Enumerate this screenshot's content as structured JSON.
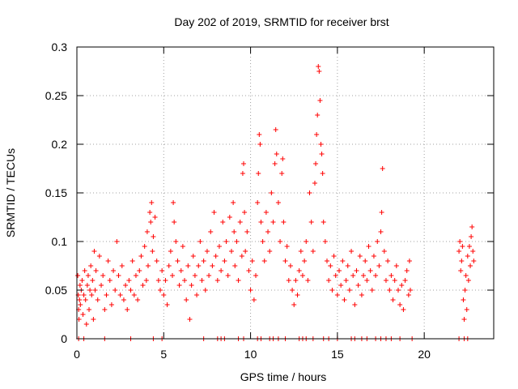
{
  "chart_data": {
    "type": "scatter",
    "title": "Day 202 of 2019, SRMTID for receiver brst",
    "xlabel": "GPS time / hours",
    "ylabel": "SRMTID / TECUs",
    "xlim": [
      0,
      24
    ],
    "ylim": [
      0,
      0.3
    ],
    "grid": true,
    "marker": "+",
    "color": "#ff0000",
    "x_ticks": [
      0,
      5,
      10,
      15,
      20
    ],
    "x_tick_labels": [
      "0",
      "5",
      "10",
      "15",
      "20"
    ],
    "y_ticks": [
      0,
      0.05,
      0.1,
      0.15,
      0.2,
      0.25,
      0.3
    ],
    "y_tick_labels": [
      "0",
      "0.05",
      "0.1",
      "0.15",
      "0.2",
      "0.25",
      "0.3"
    ],
    "series": [
      {
        "name": "SRMTID",
        "points": [
          [
            0.05,
            0.065
          ],
          [
            0.08,
            0.045
          ],
          [
            0.1,
            0.03
          ],
          [
            0.12,
            0.02
          ],
          [
            0.15,
            0.04
          ],
          [
            0.18,
            0.055
          ],
          [
            0.2,
            0.035
          ],
          [
            0.25,
            0.05
          ],
          [
            0.3,
            0.06
          ],
          [
            0.35,
            0.025
          ],
          [
            0.4,
            0.045
          ],
          [
            0.45,
            0.07
          ],
          [
            0.5,
            0.04
          ],
          [
            0.55,
            0.015
          ],
          [
            0.6,
            0.055
          ],
          [
            0.65,
            0.065
          ],
          [
            0.7,
            0.03
          ],
          [
            0.75,
            0.05
          ],
          [
            0.8,
            0.075
          ],
          [
            0.85,
            0.045
          ],
          [
            0.9,
            0.06
          ],
          [
            0.95,
            0.02
          ],
          [
            1.0,
            0.09
          ],
          [
            1.05,
            0.05
          ],
          [
            1.1,
            0.07
          ],
          [
            1.2,
            0.04
          ],
          [
            1.3,
            0.085
          ],
          [
            1.4,
            0.055
          ],
          [
            1.5,
            0.065
          ],
          [
            1.6,
            0.03
          ],
          [
            1.7,
            0.045
          ],
          [
            1.8,
            0.08
          ],
          [
            1.9,
            0.06
          ],
          [
            2.0,
            0.035
          ],
          [
            2.1,
            0.07
          ],
          [
            2.2,
            0.05
          ],
          [
            2.3,
            0.1
          ],
          [
            2.4,
            0.065
          ],
          [
            2.5,
            0.045
          ],
          [
            2.6,
            0.075
          ],
          [
            2.7,
            0.04
          ],
          [
            2.8,
            0.055
          ],
          [
            2.9,
            0.03
          ],
          [
            3.0,
            0.06
          ],
          [
            3.1,
            0.05
          ],
          [
            3.2,
            0.08
          ],
          [
            3.3,
            0.045
          ],
          [
            3.4,
            0.065
          ],
          [
            3.5,
            0.04
          ],
          [
            3.6,
            0.07
          ],
          [
            3.7,
            0.085
          ],
          [
            3.8,
            0.055
          ],
          [
            3.9,
            0.095
          ],
          [
            4.0,
            0.06
          ],
          [
            4.05,
            0.11
          ],
          [
            4.1,
            0.075
          ],
          [
            4.2,
            0.13
          ],
          [
            4.25,
            0.12
          ],
          [
            4.3,
            0.14
          ],
          [
            4.35,
            0.09
          ],
          [
            4.4,
            0.105
          ],
          [
            4.5,
            0.125
          ],
          [
            4.6,
            0.08
          ],
          [
            4.7,
            0.06
          ],
          [
            4.8,
            0.05
          ],
          [
            4.9,
            0.07
          ],
          [
            5.0,
            0.045
          ],
          [
            5.1,
            0.06
          ],
          [
            5.2,
            0.035
          ],
          [
            5.3,
            0.075
          ],
          [
            5.4,
            0.09
          ],
          [
            5.5,
            0.065
          ],
          [
            5.55,
            0.14
          ],
          [
            5.6,
            0.12
          ],
          [
            5.7,
            0.1
          ],
          [
            5.8,
            0.08
          ],
          [
            5.9,
            0.055
          ],
          [
            6.0,
            0.07
          ],
          [
            6.1,
            0.095
          ],
          [
            6.2,
            0.06
          ],
          [
            6.3,
            0.04
          ],
          [
            6.4,
            0.075
          ],
          [
            6.5,
            0.02
          ],
          [
            6.6,
            0.055
          ],
          [
            6.7,
            0.085
          ],
          [
            6.8,
            0.065
          ],
          [
            6.9,
            0.045
          ],
          [
            7.0,
            0.075
          ],
          [
            7.1,
            0.1
          ],
          [
            7.2,
            0.06
          ],
          [
            7.3,
            0.08
          ],
          [
            7.4,
            0.05
          ],
          [
            7.5,
            0.09
          ],
          [
            7.6,
            0.065
          ],
          [
            7.7,
            0.11
          ],
          [
            7.8,
            0.075
          ],
          [
            7.9,
            0.13
          ],
          [
            8.0,
            0.085
          ],
          [
            8.1,
            0.06
          ],
          [
            8.2,
            0.095
          ],
          [
            8.3,
            0.07
          ],
          [
            8.4,
            0.12
          ],
          [
            8.5,
            0.08
          ],
          [
            8.6,
            0.1
          ],
          [
            8.7,
            0.065
          ],
          [
            8.8,
            0.125
          ],
          [
            8.9,
            0.09
          ],
          [
            9.0,
            0.14
          ],
          [
            9.05,
            0.11
          ],
          [
            9.1,
            0.075
          ],
          [
            9.2,
            0.1
          ],
          [
            9.3,
            0.06
          ],
          [
            9.4,
            0.12
          ],
          [
            9.5,
            0.085
          ],
          [
            9.55,
            0.17
          ],
          [
            9.6,
            0.18
          ],
          [
            9.65,
            0.13
          ],
          [
            9.7,
            0.09
          ],
          [
            9.8,
            0.11
          ],
          [
            9.9,
            0.07
          ],
          [
            10.0,
            0.05
          ],
          [
            10.1,
            0.08
          ],
          [
            10.2,
            0.04
          ],
          [
            10.3,
            0.065
          ],
          [
            10.4,
            0.14
          ],
          [
            10.45,
            0.17
          ],
          [
            10.5,
            0.21
          ],
          [
            10.55,
            0.2
          ],
          [
            10.6,
            0.12
          ],
          [
            10.7,
            0.1
          ],
          [
            10.8,
            0.08
          ],
          [
            10.9,
            0.13
          ],
          [
            11.0,
            0.11
          ],
          [
            11.1,
            0.09
          ],
          [
            11.2,
            0.15
          ],
          [
            11.3,
            0.12
          ],
          [
            11.4,
            0.18
          ],
          [
            11.45,
            0.215
          ],
          [
            11.5,
            0.19
          ],
          [
            11.6,
            0.14
          ],
          [
            11.7,
            0.1
          ],
          [
            11.8,
            0.17
          ],
          [
            11.85,
            0.185
          ],
          [
            11.9,
            0.12
          ],
          [
            12.0,
            0.08
          ],
          [
            12.1,
            0.095
          ],
          [
            12.2,
            0.06
          ],
          [
            12.3,
            0.075
          ],
          [
            12.4,
            0.05
          ],
          [
            12.5,
            0.035
          ],
          [
            12.6,
            0.06
          ],
          [
            12.7,
            0.045
          ],
          [
            12.8,
            0.07
          ],
          [
            12.9,
            0.09
          ],
          [
            13.0,
            0.065
          ],
          [
            13.1,
            0.08
          ],
          [
            13.2,
            0.1
          ],
          [
            13.3,
            0.06
          ],
          [
            13.4,
            0.15
          ],
          [
            13.5,
            0.12
          ],
          [
            13.6,
            0.09
          ],
          [
            13.7,
            0.16
          ],
          [
            13.75,
            0.18
          ],
          [
            13.8,
            0.21
          ],
          [
            13.85,
            0.23
          ],
          [
            13.9,
            0.28
          ],
          [
            13.95,
            0.275
          ],
          [
            14.0,
            0.245
          ],
          [
            14.05,
            0.2
          ],
          [
            14.1,
            0.19
          ],
          [
            14.15,
            0.17
          ],
          [
            14.2,
            0.12
          ],
          [
            14.3,
            0.1
          ],
          [
            14.4,
            0.08
          ],
          [
            14.5,
            0.06
          ],
          [
            14.6,
            0.075
          ],
          [
            14.7,
            0.05
          ],
          [
            14.8,
            0.085
          ],
          [
            14.9,
            0.065
          ],
          [
            15.0,
            0.045
          ],
          [
            15.1,
            0.07
          ],
          [
            15.2,
            0.055
          ],
          [
            15.3,
            0.08
          ],
          [
            15.4,
            0.04
          ],
          [
            15.5,
            0.06
          ],
          [
            15.6,
            0.075
          ],
          [
            15.7,
            0.05
          ],
          [
            15.8,
            0.09
          ],
          [
            15.9,
            0.065
          ],
          [
            16.0,
            0.035
          ],
          [
            16.1,
            0.07
          ],
          [
            16.2,
            0.055
          ],
          [
            16.3,
            0.085
          ],
          [
            16.4,
            0.045
          ],
          [
            16.5,
            0.065
          ],
          [
            16.6,
            0.08
          ],
          [
            16.7,
            0.06
          ],
          [
            16.8,
            0.095
          ],
          [
            16.9,
            0.07
          ],
          [
            17.0,
            0.05
          ],
          [
            17.1,
            0.085
          ],
          [
            17.2,
            0.065
          ],
          [
            17.3,
            0.1
          ],
          [
            17.4,
            0.075
          ],
          [
            17.5,
            0.11
          ],
          [
            17.55,
            0.13
          ],
          [
            17.6,
            0.175
          ],
          [
            17.7,
            0.09
          ],
          [
            17.8,
            0.06
          ],
          [
            17.9,
            0.08
          ],
          [
            18.0,
            0.05
          ],
          [
            18.1,
            0.065
          ],
          [
            18.2,
            0.04
          ],
          [
            18.3,
            0.06
          ],
          [
            18.4,
            0.075
          ],
          [
            18.5,
            0.05
          ],
          [
            18.6,
            0.035
          ],
          [
            18.7,
            0.055
          ],
          [
            18.8,
            0.03
          ],
          [
            18.9,
            0.06
          ],
          [
            19.0,
            0.07
          ],
          [
            19.1,
            0.045
          ],
          [
            19.15,
            0.08
          ],
          [
            19.2,
            0.05
          ],
          [
            22.0,
            0.09
          ],
          [
            22.05,
            0.1
          ],
          [
            22.1,
            0.07
          ],
          [
            22.15,
            0.08
          ],
          [
            22.2,
            0.095
          ],
          [
            22.25,
            0.04
          ],
          [
            22.3,
            0.02
          ],
          [
            22.35,
            0.05
          ],
          [
            22.4,
            0.065
          ],
          [
            22.45,
            0.03
          ],
          [
            22.5,
            0.085
          ],
          [
            22.55,
            0.06
          ],
          [
            22.6,
            0.095
          ],
          [
            22.65,
            0.075
          ],
          [
            22.7,
            0.105
          ],
          [
            22.75,
            0.115
          ],
          [
            22.8,
            0.09
          ],
          [
            22.85,
            0.08
          ]
        ]
      }
    ],
    "zero_points_x": [
      0.1,
      0.4,
      1.6,
      3.1,
      4.4,
      4.9,
      7.3,
      8.1,
      8.3,
      8.5,
      9.3,
      9.6,
      10.4,
      10.6,
      11.1,
      11.3,
      11.6,
      12.0,
      12.8,
      13.0,
      13.2,
      13.6,
      14.2,
      14.5,
      15.0,
      15.8,
      16.0,
      16.4,
      16.7,
      17.2,
      17.5,
      17.8,
      18.1,
      18.6,
      19.3,
      22.0,
      22.3,
      22.5
    ]
  }
}
